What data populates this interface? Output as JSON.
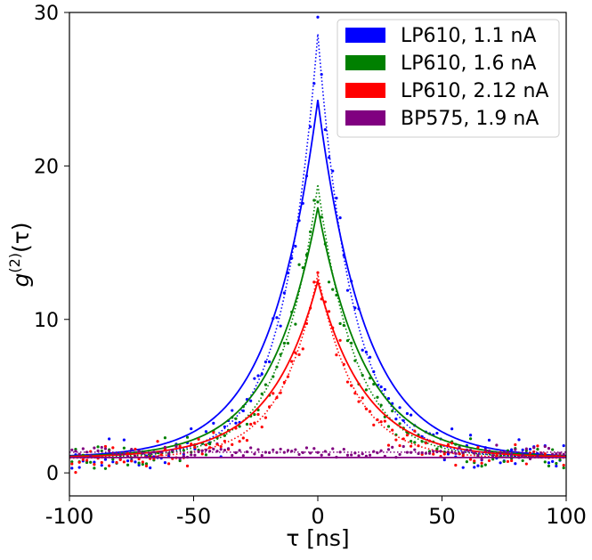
{
  "chart_data": {
    "type": "line",
    "title": "",
    "xlabel": "τ [ns]",
    "ylabel": "g(2)(τ)",
    "ylabel_parts": {
      "base": "g",
      "sup": "(2)",
      "arg": "(τ)"
    },
    "xlim": [
      -100,
      100
    ],
    "ylim": [
      -1.5,
      30
    ],
    "xticks": [
      -100,
      -50,
      0,
      50,
      100
    ],
    "xtick_labels": [
      "-100",
      "-50",
      "0",
      "50",
      "100"
    ],
    "yticks": [
      0,
      10,
      20,
      30
    ],
    "ytick_labels": [
      "0",
      "10",
      "20",
      "30"
    ],
    "grid": false,
    "legend_position": "top-right",
    "series": [
      {
        "name": "LP610, 1.1 nA",
        "color": "#0000ff",
        "fit": {
          "amplitude": 23.3,
          "decay_ns": 19,
          "baseline": 1.0
        },
        "dotted": {
          "amplitude": 27.6,
          "decay_ns": 14,
          "baseline": 1.0
        },
        "scatter_noise": 1.1,
        "seed": 11
      },
      {
        "name": "LP610, 1.6 nA",
        "color": "#008000",
        "fit": {
          "amplitude": 16.3,
          "decay_ns": 19,
          "baseline": 1.0
        },
        "dotted": {
          "amplitude": 17.8,
          "decay_ns": 15,
          "baseline": 1.0
        },
        "scatter_noise": 0.9,
        "seed": 23
      },
      {
        "name": "LP610, 2.12 nA",
        "color": "#ff0000",
        "fit": {
          "amplitude": 11.5,
          "decay_ns": 19,
          "baseline": 1.0
        },
        "dotted": {
          "amplitude": 12.0,
          "decay_ns": 15,
          "baseline": 0.95
        },
        "scatter_noise": 0.8,
        "seed": 37
      },
      {
        "name": "BP575, 1.9 nA",
        "color": "#800080",
        "fit": {
          "amplitude": 0.0,
          "decay_ns": 19,
          "baseline": 1.0
        },
        "dotted": {
          "amplitude": 0.0,
          "decay_ns": 19,
          "baseline": 1.35
        },
        "scatter_noise": 0.35,
        "seed": 51
      }
    ]
  }
}
